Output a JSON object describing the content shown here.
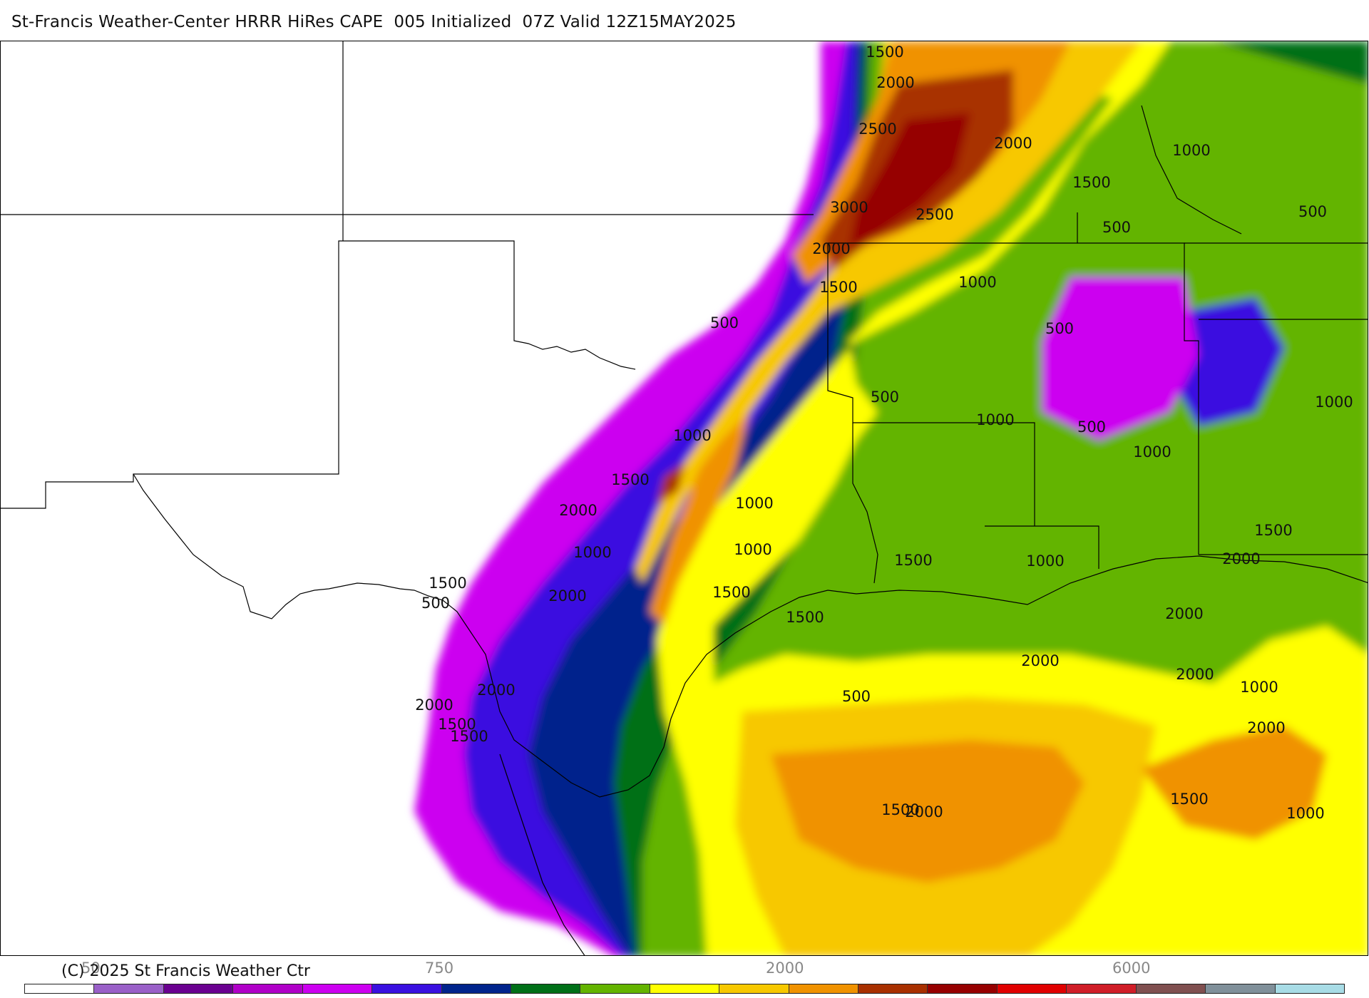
{
  "header": {
    "title": "St-Francis Weather-Center HRRR HiRes CAPE  005 Initialized  07Z Valid 12Z15MAY2025"
  },
  "map": {
    "parameter": "CAPE",
    "colors": {
      "c500": "#cc00f0",
      "c750": "#3a10e0",
      "c1000": "#00248c",
      "c1250": "#007018",
      "c1500": "#64b400",
      "c2000": "#ffff00",
      "c2500": "#f7c800",
      "c3000": "#f09200",
      "c3500": "#a83000",
      "c4000": "#960000"
    },
    "contour_labels": [
      "1500",
      "2000",
      "2500",
      "2000",
      "1000",
      "3000",
      "2500",
      "1500",
      "500",
      "500",
      "2000",
      "1500",
      "1000",
      "500",
      "500",
      "500",
      "1000",
      "500",
      "1000",
      "1000",
      "1500",
      "1000",
      "2000",
      "1000",
      "1000",
      "1000",
      "1500",
      "1500",
      "1500",
      "1000",
      "2000",
      "1500",
      "500",
      "2000",
      "1500",
      "2000",
      "2000",
      "2000",
      "1000",
      "500",
      "2000",
      "2000",
      "1500",
      "1500",
      "2000",
      "1500",
      "2000",
      "1000",
      "1500"
    ]
  },
  "colorbar": {
    "tick_labels": [
      "50",
      "750",
      "2000",
      "6000"
    ],
    "segments": [
      "#ffffff",
      "#9a60c8",
      "#6a0090",
      "#b000c8",
      "#cc00f0",
      "#3a10e0",
      "#00248c",
      "#007018",
      "#64b400",
      "#ffff00",
      "#f7c800",
      "#f09200",
      "#a83000",
      "#960000",
      "#e00000",
      "#d01e28",
      "#805050",
      "#80909a",
      "#a8dce6"
    ]
  },
  "footer": {
    "copyright": "(C) 2025 St Francis Weather Ctr"
  }
}
